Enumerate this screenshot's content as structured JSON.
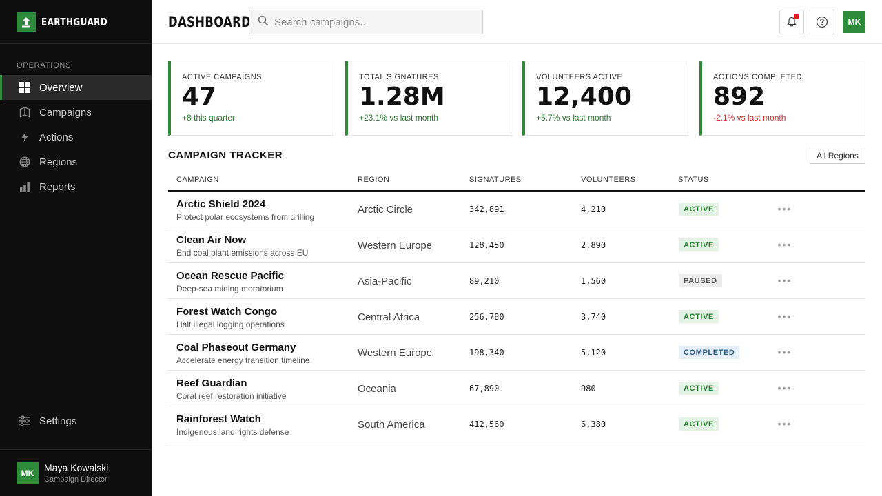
{
  "brand": {
    "name": "EARTHGUARD"
  },
  "sidebar": {
    "section_label": "OPERATIONS",
    "items": [
      {
        "label": "Overview",
        "icon": "grid-icon",
        "active": true
      },
      {
        "label": "Campaigns",
        "icon": "map-icon"
      },
      {
        "label": "Actions",
        "icon": "bolt-icon"
      },
      {
        "label": "Regions",
        "icon": "globe-icon"
      },
      {
        "label": "Reports",
        "icon": "bar-chart-icon"
      }
    ],
    "settings_label": "Settings",
    "user": {
      "initials": "MK",
      "name": "Maya Kowalski",
      "role": "Campaign Director"
    }
  },
  "header": {
    "title": "DASHBOARD",
    "search_placeholder": "Search campaigns...",
    "avatar_initials": "MK"
  },
  "stats": [
    {
      "label": "ACTIVE CAMPAIGNS",
      "value": "47",
      "delta": "+8 this quarter",
      "trend": "up"
    },
    {
      "label": "TOTAL SIGNATURES",
      "value": "1.28M",
      "delta": "+23.1% vs last month",
      "trend": "up"
    },
    {
      "label": "VOLUNTEERS ACTIVE",
      "value": "12,400",
      "delta": "+5.7% vs last month",
      "trend": "up"
    },
    {
      "label": "ACTIONS COMPLETED",
      "value": "892",
      "delta": "-2.1% vs last month",
      "trend": "down"
    }
  ],
  "tracker": {
    "title": "CAMPAIGN TRACKER",
    "filter_label": "All Regions",
    "columns": [
      "CAMPAIGN",
      "REGION",
      "SIGNATURES",
      "VOLUNTEERS",
      "STATUS"
    ],
    "rows": [
      {
        "name": "Arctic Shield 2024",
        "desc": "Protect polar ecosystems from drilling",
        "region": "Arctic Circle",
        "signatures": "342,891",
        "volunteers": "4,210",
        "status": "ACTIVE"
      },
      {
        "name": "Clean Air Now",
        "desc": "End coal plant emissions across EU",
        "region": "Western Europe",
        "signatures": "128,450",
        "volunteers": "2,890",
        "status": "ACTIVE"
      },
      {
        "name": "Ocean Rescue Pacific",
        "desc": "Deep-sea mining moratorium",
        "region": "Asia-Pacific",
        "signatures": "89,210",
        "volunteers": "1,560",
        "status": "PAUSED"
      },
      {
        "name": "Forest Watch Congo",
        "desc": "Halt illegal logging operations",
        "region": "Central Africa",
        "signatures": "256,780",
        "volunteers": "3,740",
        "status": "ACTIVE"
      },
      {
        "name": "Coal Phaseout Germany",
        "desc": "Accelerate energy transition timeline",
        "region": "Western Europe",
        "signatures": "198,340",
        "volunteers": "5,120",
        "status": "COMPLETED"
      },
      {
        "name": "Reef Guardian",
        "desc": "Coral reef restoration initiative",
        "region": "Oceania",
        "signatures": "67,890",
        "volunteers": "980",
        "status": "ACTIVE"
      },
      {
        "name": "Rainforest Watch",
        "desc": "Indigenous land rights defense",
        "region": "South America",
        "signatures": "412,560",
        "volunteers": "6,380",
        "status": "ACTIVE"
      }
    ]
  },
  "colors": {
    "accent": "#2e8b3a",
    "sidebar_bg": "#0f0f0f",
    "negative": "#d32f2f",
    "notification": "#e02020"
  }
}
